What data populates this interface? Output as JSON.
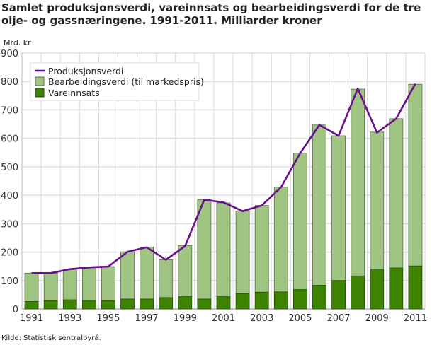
{
  "chart_data": {
    "type": "bar",
    "title": "Samlet produksjonsverdi, vareinnsats og bearbeidingsverdi for de tre olje- og gassnæringene. 1991-2011. Milliarder kroner",
    "ylabel": "Mrd. kr",
    "source": "Kilde: Statistisk sentralbyrå.",
    "ylim": [
      0,
      900
    ],
    "yticks": [
      0,
      100,
      200,
      300,
      400,
      500,
      600,
      700,
      800,
      900
    ],
    "grid": true,
    "legend_position": "top-left",
    "categories": [
      "1991",
      "1992",
      "1993",
      "1994",
      "1995",
      "1996",
      "1997",
      "1998",
      "1999",
      "2000",
      "2001",
      "2002",
      "2003",
      "2004",
      "2005",
      "2006",
      "2007",
      "2008",
      "2009",
      "2010",
      "2011"
    ],
    "xtick_labels": [
      "1991",
      "1993",
      "1995",
      "1997",
      "1999",
      "2001",
      "2003",
      "2005",
      "2007",
      "2009",
      "2011"
    ],
    "series": [
      {
        "name": "Produksjonsverdi",
        "type": "line",
        "color": "#6a0f8e",
        "values": [
          126,
          126,
          140,
          146,
          149,
          201,
          217,
          173,
          221,
          384,
          375,
          344,
          364,
          428,
          548,
          647,
          609,
          775,
          620,
          669,
          792
        ]
      },
      {
        "name": "Bearbeidingsverdi (til markedspris)",
        "type": "bar-stacked",
        "color": "#a0c481",
        "values": [
          100,
          97,
          108,
          116,
          120,
          166,
          183,
          133,
          180,
          349,
          330,
          290,
          305,
          369,
          480,
          564,
          509,
          657,
          482,
          525,
          639
        ]
      },
      {
        "name": "Vareinnsats",
        "type": "bar-stacked",
        "color": "#3e8300",
        "values": [
          26,
          29,
          32,
          30,
          29,
          35,
          35,
          40,
          43,
          35,
          43,
          54,
          59,
          60,
          68,
          83,
          100,
          116,
          140,
          144,
          151
        ]
      }
    ]
  }
}
